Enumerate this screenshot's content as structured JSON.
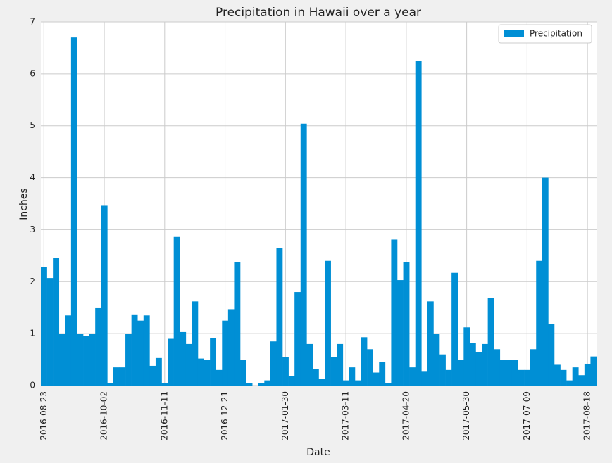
{
  "chart_data": {
    "type": "bar",
    "title": "Precipitation in Hawaii over a year",
    "x_label": "Date",
    "y_label": "Inches",
    "categories": [
      "2016-08-23",
      null,
      null,
      null,
      null,
      null,
      null,
      null,
      null,
      null,
      "2016-10-02",
      null,
      null,
      null,
      null,
      null,
      null,
      null,
      null,
      null,
      "2016-11-11",
      null,
      null,
      null,
      null,
      null,
      null,
      null,
      null,
      null,
      "2016-12-21",
      null,
      null,
      null,
      null,
      null,
      null,
      null,
      null,
      null,
      "2017-01-30",
      null,
      null,
      null,
      null,
      null,
      null,
      null,
      null,
      null,
      "2017-03-11",
      null,
      null,
      null,
      null,
      null,
      null,
      null,
      null,
      null,
      "2017-04-20",
      null,
      null,
      null,
      null,
      null,
      null,
      null,
      null,
      null,
      "2017-05-30",
      null,
      null,
      null,
      null,
      null,
      null,
      null,
      null,
      null,
      "2017-07-09",
      null,
      null,
      null,
      null,
      null,
      null,
      null,
      null,
      null,
      "2017-08-18",
      null
    ],
    "series": [
      {
        "name": "Precipitation",
        "color": "#008fd5",
        "values": [
          2.28,
          2.07,
          2.46,
          1.0,
          1.35,
          6.7,
          1.0,
          0.95,
          1.0,
          1.49,
          3.46,
          0.05,
          0.35,
          0.35,
          1.0,
          1.37,
          1.25,
          1.35,
          0.38,
          0.53,
          0.05,
          0.9,
          2.86,
          1.03,
          0.8,
          1.62,
          0.52,
          0.5,
          0.92,
          0.3,
          1.25,
          1.47,
          2.37,
          0.5,
          0.05,
          0,
          0.05,
          0.1,
          0.85,
          2.65,
          0.55,
          0.18,
          1.8,
          5.04,
          0.8,
          0.32,
          0.13,
          2.4,
          0.55,
          0.8,
          0.1,
          0.35,
          0.1,
          0.93,
          0.7,
          0.25,
          0.45,
          0.05,
          2.81,
          2.03,
          2.37,
          0.35,
          6.25,
          0.28,
          1.62,
          1.0,
          0.6,
          0.3,
          2.17,
          0.5,
          1.12,
          0.82,
          0.65,
          0.8,
          1.68,
          0.7,
          0.5,
          0.5,
          0.5,
          0.3,
          0.3,
          0.7,
          2.4,
          4.0,
          1.18,
          0.4,
          0.3,
          0.1,
          0.35,
          0.2,
          0.42,
          0.56
        ]
      }
    ],
    "ylim": [
      0,
      7
    ],
    "yticks": [
      0,
      1,
      2,
      3,
      4,
      5,
      6,
      7
    ],
    "grid": true,
    "legend": "upper right"
  }
}
